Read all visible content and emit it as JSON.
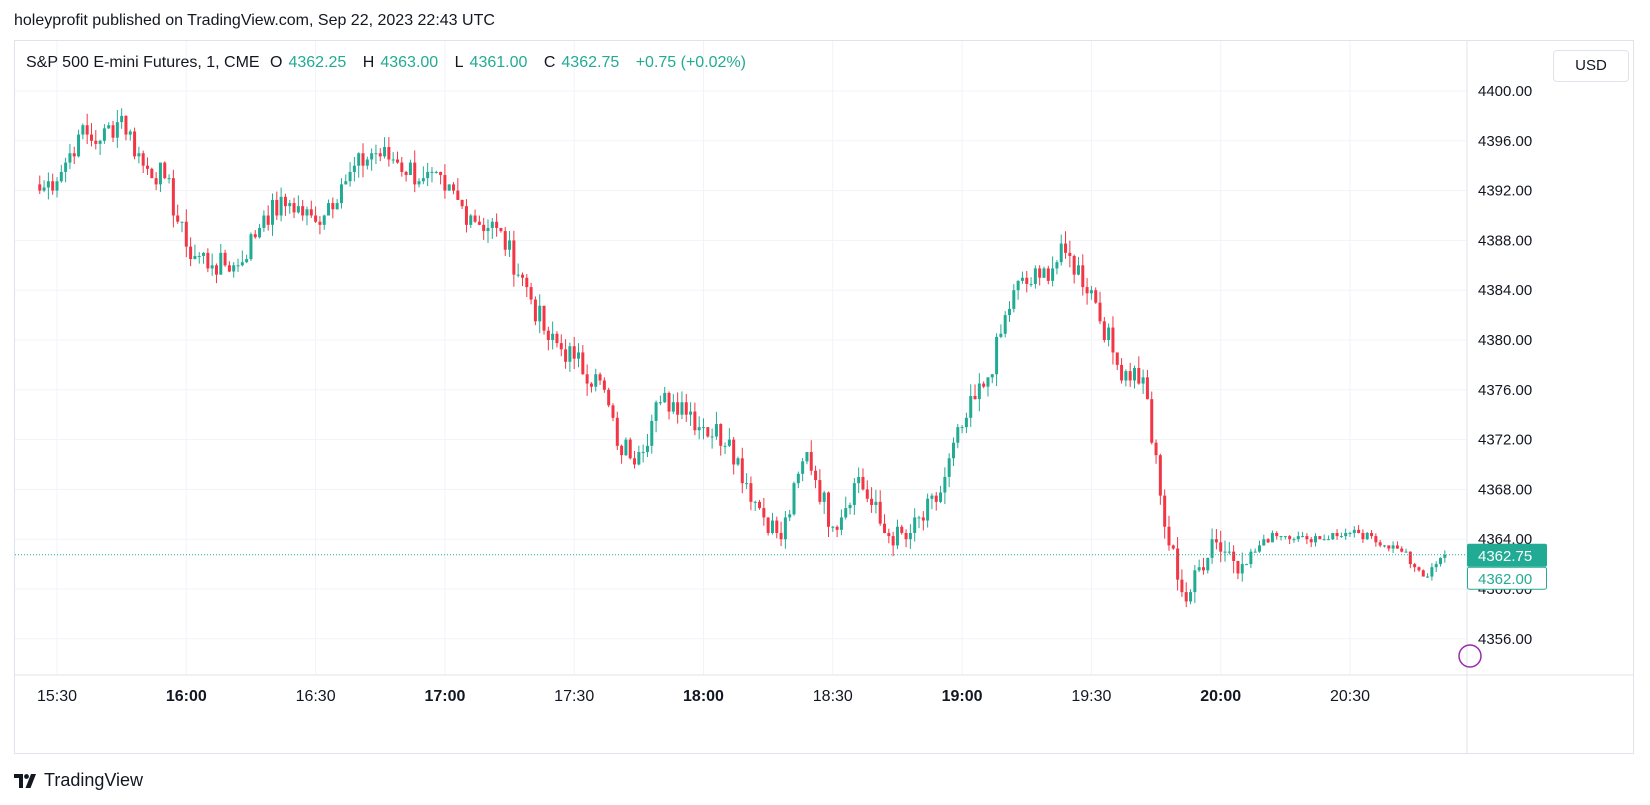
{
  "header": {
    "published": "holeyprofit published on TradingView.com, Sep 22, 2023 22:43 UTC"
  },
  "legend": {
    "symbol": "S&P 500 E-mini Futures, 1, CME",
    "o_label": "O",
    "o_value": "4362.25",
    "h_label": "H",
    "h_value": "4363.00",
    "l_label": "L",
    "l_value": "4361.00",
    "c_label": "C",
    "c_value": "4362.75",
    "change": "+0.75 (+0.02%)"
  },
  "currency": "USD",
  "brand": {
    "name": "TradingView"
  },
  "colors": {
    "up": "#22ab94",
    "down": "#f23645",
    "grid": "#f0f3fa",
    "axis_text": "#131722"
  },
  "chart_data": {
    "type": "candlestick",
    "interval_minutes": 1,
    "ylim": [
      4352.5,
      4401.5
    ],
    "y_ticks": [
      "4400.00",
      "4396.00",
      "4392.00",
      "4388.00",
      "4384.00",
      "4380.00",
      "4376.00",
      "4372.00",
      "4368.00",
      "4364.00",
      "4360.00",
      "4356.00"
    ],
    "x_ticks": [
      {
        "label": "15:30",
        "bold": false
      },
      {
        "label": "16:00",
        "bold": true
      },
      {
        "label": "16:30",
        "bold": false
      },
      {
        "label": "17:00",
        "bold": true
      },
      {
        "label": "17:30",
        "bold": false
      },
      {
        "label": "18:00",
        "bold": true
      },
      {
        "label": "18:30",
        "bold": false
      },
      {
        "label": "19:00",
        "bold": true
      },
      {
        "label": "19:30",
        "bold": false
      },
      {
        "label": "20:00",
        "bold": true
      },
      {
        "label": "20:30",
        "bold": false
      }
    ],
    "last_price": "4362.75",
    "last_price_value": 4362.75,
    "bid_price": "4362.00",
    "close_anchors": [
      [
        "15:26",
        4392.0
      ],
      [
        "15:31",
        4393.5
      ],
      [
        "15:35",
        4396.5
      ],
      [
        "15:40",
        4396.0
      ],
      [
        "15:45",
        4398.0
      ],
      [
        "15:50",
        4394.0
      ],
      [
        "15:55",
        4393.0
      ],
      [
        "16:00",
        4387.5
      ],
      [
        "16:06",
        4386.0
      ],
      [
        "16:12",
        4386.0
      ],
      [
        "16:18",
        4390.0
      ],
      [
        "16:24",
        4391.0
      ],
      [
        "16:30",
        4389.5
      ],
      [
        "16:36",
        4392.5
      ],
      [
        "16:43",
        4395.0
      ],
      [
        "16:48",
        4394.5
      ],
      [
        "16:55",
        4393.0
      ],
      [
        "17:00",
        4392.0
      ],
      [
        "17:06",
        4390.0
      ],
      [
        "17:12",
        4389.0
      ],
      [
        "17:18",
        4385.0
      ],
      [
        "17:24",
        4380.0
      ],
      [
        "17:30",
        4378.5
      ],
      [
        "17:37",
        4376.0
      ],
      [
        "17:40",
        4371.5
      ],
      [
        "17:45",
        4371.0
      ],
      [
        "17:50",
        4375.0
      ],
      [
        "17:55",
        4375.0
      ],
      [
        "18:00",
        4373.0
      ],
      [
        "18:06",
        4372.0
      ],
      [
        "18:12",
        4367.0
      ],
      [
        "18:18",
        4364.0
      ],
      [
        "18:24",
        4371.0
      ],
      [
        "18:30",
        4365.0
      ],
      [
        "18:36",
        4369.0
      ],
      [
        "18:42",
        4364.5
      ],
      [
        "18:47",
        4364.0
      ],
      [
        "18:54",
        4367.0
      ],
      [
        "19:00",
        4373.0
      ],
      [
        "19:06",
        4377.0
      ],
      [
        "19:12",
        4384.0
      ],
      [
        "19:18",
        4385.0
      ],
      [
        "19:24",
        4387.0
      ],
      [
        "19:30",
        4384.0
      ],
      [
        "19:36",
        4378.0
      ],
      [
        "19:42",
        4377.0
      ],
      [
        "19:47",
        4365.0
      ],
      [
        "19:52",
        4359.0
      ],
      [
        "19:58",
        4364.0
      ],
      [
        "20:05",
        4362.0
      ],
      [
        "20:12",
        4364.5
      ],
      [
        "20:20",
        4364.0
      ],
      [
        "20:30",
        4364.5
      ],
      [
        "20:40",
        4363.5
      ],
      [
        "20:48",
        4361.0
      ],
      [
        "20:52",
        4362.75
      ]
    ]
  }
}
